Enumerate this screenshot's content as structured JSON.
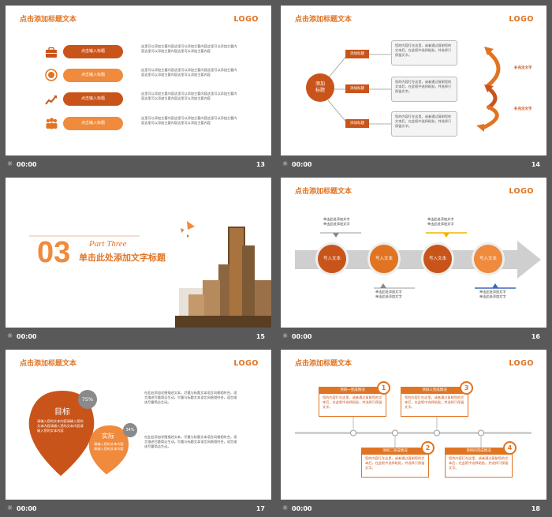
{
  "colors": {
    "accent": "#e07422",
    "dark_orange": "#c9541a",
    "background": "#595959"
  },
  "slides": [
    {
      "number": "13",
      "time": "00:00",
      "title": "点击添加标题文本",
      "logo": "LOGO",
      "rows": [
        {
          "icon": "briefcase-icon",
          "label": "点击输入标题",
          "text": "这里可以添加主要内容这里可以添加主要内容这里可以添加主要内容这里可以添加主要内容这里可以添加主要内容"
        },
        {
          "icon": "coin-icon",
          "label": "点击输入标题",
          "text": "这里可以添加主要内容这里可以添加主要内容这里可以添加主要内容这里可以添加主要内容这里可以添加主要内容"
        },
        {
          "icon": "chart-icon",
          "label": "点击输入标题",
          "text": "这里可以添加主要内容这里可以添加主要内容这里可以添加主要内容这里可以添加主要内容这里可以添加主要内容"
        },
        {
          "icon": "people-icon",
          "label": "点击输入标题",
          "text": "这里可以添加主要内容这里可以添加主要内容这里可以添加主要内容这里可以添加主要内容这里可以添加主要内容"
        }
      ]
    },
    {
      "number": "14",
      "time": "00:00",
      "title": "点击添加标题文本",
      "logo": "LOGO",
      "center": "添加\n标题",
      "tags": [
        "添加标题",
        "添加标题",
        "添加标题"
      ],
      "box_text": "您的内容打在这里，或者通过复制您的文本后，在此框中选择粘贴，并选择只保留文字。",
      "side_labels": [
        "补充注文字",
        "补充注文字"
      ]
    },
    {
      "number": "15",
      "time": "00:00",
      "num_big": "03",
      "part": "Part Three",
      "subtitle": "单击此处添加文字标题"
    },
    {
      "number": "16",
      "time": "00:00",
      "title": "点击添加标题文本",
      "logo": "LOGO",
      "circles": [
        "写入文本",
        "写入文本",
        "写入文本",
        "写入文本"
      ],
      "note": "单击此处添加文字\n单击此处添加文字"
    },
    {
      "number": "17",
      "time": "00:00",
      "title": "点击添加标题文本",
      "logo": "LOGO",
      "drop_big_label": "目标",
      "drop_big_text": "请输入您的文本内容请输入您的文本内容请输入您的文本内容请输入您的文本内容",
      "drop_small_label": "实际",
      "drop_small_text": "请输入您的文本内容请输入您的文本内容",
      "pct_big": "75%",
      "pct_small": "34%",
      "para1": "在此处添加详细描述文本，尽量与标题文本语言风格相符合，语言描述尽量简洁生动。尽量与标题文本语言风格相符合，语言描述尽量简洁生动。",
      "para2": "在此处添加详细描述文本，尽量与标题文本语言风格相符合，语言描述尽量简洁生动。尽量与标题文本语言风格相符合，语言描述尽量简洁生动。"
    },
    {
      "number": "18",
      "time": "00:00",
      "title": "点击添加标题文本",
      "logo": "LOGO",
      "items": [
        {
          "num": "1",
          "head": "项目一完成情况"
        },
        {
          "num": "2",
          "head": "项目二完成情况"
        },
        {
          "num": "3",
          "head": "项目三完成情况"
        },
        {
          "num": "4",
          "head": "项目四完成情况"
        }
      ],
      "item_text": "您的内容打在这里，或者通过复制您的文本后，在此框中选择粘贴，并选择只保留文字。"
    }
  ]
}
